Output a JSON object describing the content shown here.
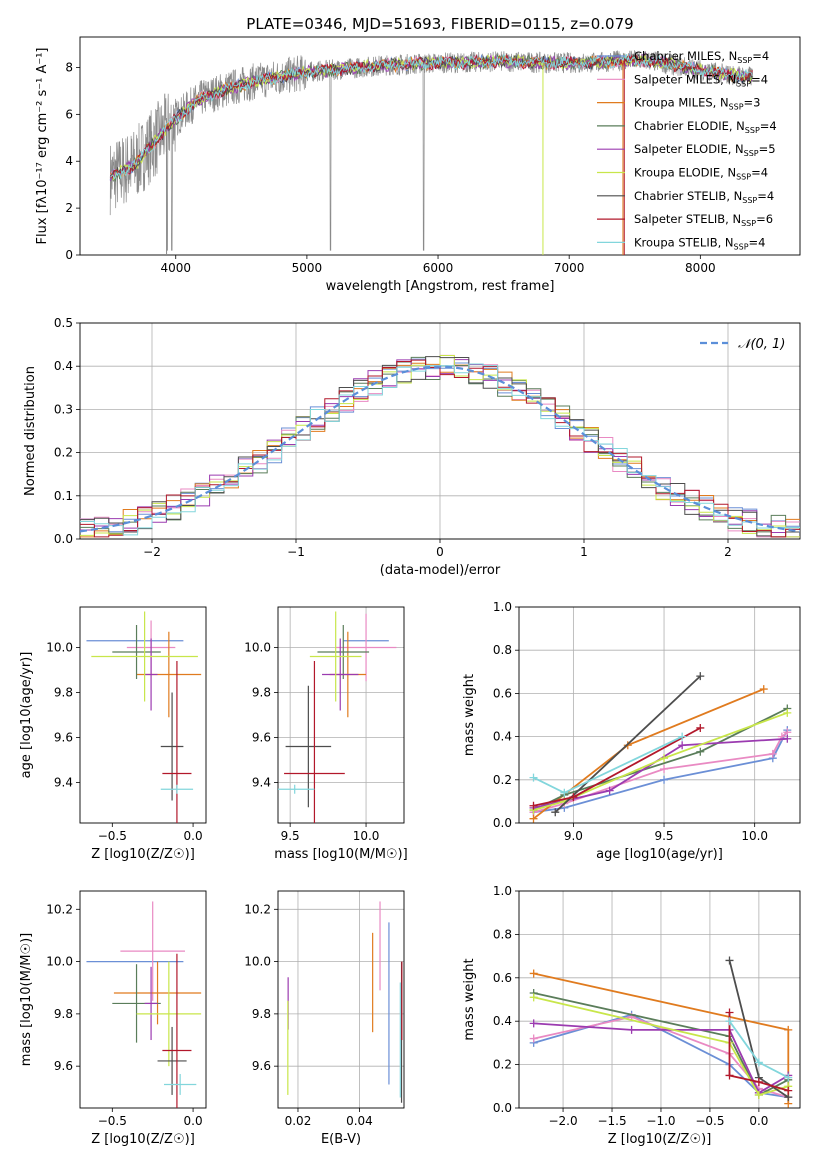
{
  "figure": {
    "title": "PLATE=0346, MJD=51693, FIBERID=0115, z=0.079"
  },
  "colors": {
    "chabrier_miles": "#6b8fd6",
    "salpeter_miles": "#e98ac3",
    "kroupa_miles": "#e07b1f",
    "chabrier_elodie": "#5a7d5a",
    "salpeter_elodie": "#9b3bb0",
    "kroupa_elodie": "#c8e64a",
    "chabrier_stelib": "#4d4d4d",
    "salpeter_stelib": "#b2182b",
    "kroupa_stelib": "#82d6dc",
    "data_gray": "#8a8a8a",
    "normal_curve": "#5b8fd9"
  },
  "chart_data": [
    {
      "id": "spectrum",
      "type": "line",
      "title": "",
      "xlabel": "wavelength [Angstrom, rest frame]",
      "ylabel": "Flux [fλ10⁻¹⁷ erg cm⁻² s⁻¹ A⁻¹]",
      "xlim": [
        3270,
        8760
      ],
      "ylim": [
        0,
        9.3
      ],
      "xticks": [
        4000,
        5000,
        6000,
        7000,
        8000
      ],
      "yticks": [
        0,
        2,
        4,
        6,
        8
      ],
      "grid": false,
      "legend": "right",
      "continuum": {
        "x": [
          3500,
          3600,
          3700,
          3800,
          3900,
          4000,
          4100,
          4200,
          4400,
          4600,
          4800,
          5000,
          5200,
          5400,
          5600,
          5800,
          6000,
          6200,
          6400,
          6600,
          6800,
          7000,
          7200,
          7400,
          7600,
          7800,
          8000,
          8200,
          8400
        ],
        "y": [
          3.3,
          3.6,
          3.9,
          4.6,
          5.2,
          5.8,
          6.3,
          6.7,
          7.1,
          7.4,
          7.6,
          7.8,
          7.9,
          8.0,
          8.1,
          8.15,
          8.2,
          8.2,
          8.25,
          8.25,
          8.2,
          8.2,
          8.2,
          8.3,
          8.3,
          8.1,
          7.9,
          7.7,
          7.6
        ]
      },
      "series": [
        {
          "name": "Chabrier MILES, N_SSP=4",
          "color_key": "chabrier_miles"
        },
        {
          "name": "Salpeter MILES, N_SSP=4",
          "color_key": "salpeter_miles"
        },
        {
          "name": "Kroupa MILES, N_SSP=3",
          "color_key": "kroupa_miles"
        },
        {
          "name": "Chabrier ELODIE, N_SSP=4",
          "color_key": "chabrier_elodie"
        },
        {
          "name": "Salpeter ELODIE, N_SSP=5",
          "color_key": "salpeter_elodie"
        },
        {
          "name": "Kroupa ELODIE, N_SSP=4",
          "color_key": "kroupa_elodie"
        },
        {
          "name": "Chabrier STELIB, N_SSP=4",
          "color_key": "chabrier_stelib"
        },
        {
          "name": "Salpeter STELIB, N_SSP=6",
          "color_key": "salpeter_stelib"
        },
        {
          "name": "Kroupa STELIB, N_SSP=4",
          "color_key": "kroupa_stelib"
        }
      ]
    },
    {
      "id": "residuals",
      "type": "line",
      "xlabel": "(data-model)/error",
      "ylabel": "Normed distribution",
      "xlim": [
        -2.5,
        2.5
      ],
      "ylim": [
        0,
        0.5
      ],
      "xticks": [
        -2,
        -1,
        0,
        1,
        2
      ],
      "yticks": [
        0.0,
        0.1,
        0.2,
        0.3,
        0.4,
        0.5
      ],
      "grid": true,
      "legend": "top-right",
      "normal_label": "𝒩(0, 1)",
      "bin_width": 0.1,
      "bins_start": -2.5
    },
    {
      "id": "age_vs_Z",
      "type": "scatter",
      "xlabel": "Z [log10(Z/Z☉)]",
      "ylabel": "age [log10(age/yr)]",
      "xlim": [
        -0.7,
        0.08
      ],
      "ylim": [
        9.22,
        10.18
      ],
      "xticks": [
        -0.5,
        0.0
      ],
      "yticks": [
        9.4,
        9.6,
        9.8,
        10.0
      ],
      "grid": false,
      "points": [
        {
          "color_key": "chabrier_miles",
          "x": -0.36,
          "xerr": 0.3,
          "y": 10.03,
          "yerr": 0.0
        },
        {
          "color_key": "salpeter_miles",
          "x": -0.26,
          "xerr": 0.15,
          "y": 10.0,
          "yerr": 0.12
        },
        {
          "color_key": "kroupa_miles",
          "x": -0.15,
          "xerr": 0.2,
          "y": 9.88,
          "yerr": 0.19
        },
        {
          "color_key": "chabrier_elodie",
          "x": -0.35,
          "xerr": 0.15,
          "y": 9.98,
          "yerr": 0.12
        },
        {
          "color_key": "salpeter_elodie",
          "x": -0.26,
          "xerr": 0.04,
          "y": 9.88,
          "yerr": 0.16
        },
        {
          "color_key": "kroupa_elodie",
          "x": -0.3,
          "xerr": 0.33,
          "y": 9.96,
          "yerr": 0.2
        },
        {
          "color_key": "chabrier_stelib",
          "x": -0.13,
          "xerr": 0.07,
          "y": 9.56,
          "yerr": 0.24
        },
        {
          "color_key": "salpeter_stelib",
          "x": -0.1,
          "xerr": 0.09,
          "y": 9.44,
          "yerr": 0.5
        },
        {
          "color_key": "kroupa_stelib",
          "x": -0.1,
          "xerr": 0.1,
          "y": 9.37,
          "yerr": 0.02
        }
      ]
    },
    {
      "id": "age_vs_mass",
      "type": "scatter",
      "xlabel": "mass [log10(M/M☉)]",
      "ylabel": "",
      "xlim": [
        9.42,
        10.25
      ],
      "ylim": [
        9.22,
        10.18
      ],
      "xticks": [
        9.5,
        10.0
      ],
      "yticks": [
        9.4,
        9.6,
        9.8,
        10.0
      ],
      "grid": true,
      "points": [
        {
          "color_key": "chabrier_miles",
          "x": 10.0,
          "xerr": 0.15,
          "y": 10.03,
          "yerr": 0.0
        },
        {
          "color_key": "salpeter_miles",
          "x": 10.0,
          "xerr": 0.2,
          "y": 10.0,
          "yerr": 0.15
        },
        {
          "color_key": "kroupa_miles",
          "x": 9.88,
          "xerr": 0.12,
          "y": 9.88,
          "yerr": 0.19
        },
        {
          "color_key": "chabrier_elodie",
          "x": 9.85,
          "xerr": 0.17,
          "y": 9.98,
          "yerr": 0.12
        },
        {
          "color_key": "salpeter_elodie",
          "x": 9.83,
          "xerr": 0.12,
          "y": 9.88,
          "yerr": 0.16
        },
        {
          "color_key": "kroupa_elodie",
          "x": 9.8,
          "xerr": 0.17,
          "y": 9.96,
          "yerr": 0.2
        },
        {
          "color_key": "chabrier_stelib",
          "x": 9.62,
          "xerr": 0.15,
          "y": 9.56,
          "yerr": 0.27
        },
        {
          "color_key": "salpeter_stelib",
          "x": 9.66,
          "xerr": 0.2,
          "y": 9.44,
          "yerr": 0.5
        },
        {
          "color_key": "kroupa_stelib",
          "x": 9.53,
          "xerr": 0.13,
          "y": 9.37,
          "yerr": 0.02
        }
      ]
    },
    {
      "id": "weight_vs_age",
      "type": "line",
      "xlabel": "age  [log10(age/yr)]",
      "ylabel": "mass weight",
      "xlim": [
        8.7,
        10.25
      ],
      "ylim": [
        0,
        1.0
      ],
      "xticks": [
        9.0,
        9.5,
        10.0
      ],
      "yticks": [
        0.0,
        0.2,
        0.4,
        0.6,
        0.8,
        1.0
      ],
      "grid": true,
      "series": [
        {
          "color_key": "chabrier_miles",
          "x": [
            8.78,
            8.95,
            9.5,
            10.1,
            10.18
          ],
          "y": [
            0.05,
            0.07,
            0.2,
            0.3,
            0.43
          ]
        },
        {
          "color_key": "salpeter_miles",
          "x": [
            8.78,
            8.95,
            9.5,
            10.1,
            10.15,
            10.18
          ],
          "y": [
            0.05,
            0.09,
            0.25,
            0.32,
            0.4,
            0.42
          ]
        },
        {
          "color_key": "kroupa_miles",
          "x": [
            8.78,
            9.3,
            10.05
          ],
          "y": [
            0.02,
            0.36,
            0.62
          ]
        },
        {
          "color_key": "chabrier_elodie",
          "x": [
            8.78,
            8.95,
            9.7,
            10.18
          ],
          "y": [
            0.06,
            0.13,
            0.33,
            0.53
          ]
        },
        {
          "color_key": "salpeter_elodie",
          "x": [
            8.78,
            9.2,
            9.6,
            10.18
          ],
          "y": [
            0.07,
            0.15,
            0.36,
            0.39
          ]
        },
        {
          "color_key": "kroupa_elodie",
          "x": [
            8.78,
            8.95,
            9.5,
            10.18
          ],
          "y": [
            0.06,
            0.1,
            0.3,
            0.51
          ]
        },
        {
          "color_key": "chabrier_stelib",
          "x": [
            8.9,
            9.7
          ],
          "y": [
            0.05,
            0.68
          ]
        },
        {
          "color_key": "salpeter_stelib",
          "x": [
            8.78,
            9.0,
            9.7
          ],
          "y": [
            0.08,
            0.12,
            0.44
          ]
        },
        {
          "color_key": "kroupa_stelib",
          "x": [
            8.78,
            8.95,
            9.6
          ],
          "y": [
            0.21,
            0.14,
            0.4
          ]
        }
      ]
    },
    {
      "id": "mass_vs_Z",
      "type": "scatter",
      "xlabel": "Z [log10(Z/Z☉)]",
      "ylabel": "mass [log10(M/M☉)]",
      "xlim": [
        -0.7,
        0.08
      ],
      "ylim": [
        9.44,
        10.27
      ],
      "xticks": [
        -0.5,
        0.0
      ],
      "yticks": [
        9.6,
        9.8,
        10.0,
        10.2
      ],
      "grid": false,
      "points": [
        {
          "color_key": "chabrier_miles",
          "x": -0.36,
          "xerr": 0.3,
          "y": 10.0,
          "yerr": 0.0
        },
        {
          "color_key": "salpeter_miles",
          "x": -0.25,
          "xerr": 0.2,
          "y": 10.04,
          "yerr": 0.19
        },
        {
          "color_key": "kroupa_miles",
          "x": -0.22,
          "xerr": 0.27,
          "y": 9.88,
          "yerr": 0.12
        },
        {
          "color_key": "chabrier_elodie",
          "x": -0.35,
          "xerr": 0.15,
          "y": 9.84,
          "yerr": 0.15
        },
        {
          "color_key": "salpeter_elodie",
          "x": -0.26,
          "xerr": 0.04,
          "y": 9.84,
          "yerr": 0.14
        },
        {
          "color_key": "kroupa_elodie",
          "x": -0.15,
          "xerr": 0.2,
          "y": 9.8,
          "yerr": 0.2
        },
        {
          "color_key": "chabrier_stelib",
          "x": -0.13,
          "xerr": 0.09,
          "y": 9.62,
          "yerr": 0.13
        },
        {
          "color_key": "salpeter_stelib",
          "x": -0.1,
          "xerr": 0.09,
          "y": 9.66,
          "yerr": 0.37
        },
        {
          "color_key": "kroupa_stelib",
          "x": -0.08,
          "xerr": 0.1,
          "y": 9.53,
          "yerr": 0.04
        }
      ]
    },
    {
      "id": "mass_vs_ebv",
      "type": "scatter",
      "xlabel": "E(B-V)",
      "ylabel": "",
      "xlim": [
        0.0135,
        0.0545
      ],
      "ylim": [
        9.44,
        10.27
      ],
      "xticks": [
        0.02,
        0.04
      ],
      "yticks": [
        9.6,
        9.8,
        10.0,
        10.2
      ],
      "grid": true,
      "points": [
        {
          "color_key": "salpeter_elodie",
          "x": 0.0168,
          "y": 9.84,
          "yerr": 0.1
        },
        {
          "color_key": "kroupa_elodie",
          "x": 0.0167,
          "y": 9.67,
          "yerr": 0.18
        },
        {
          "color_key": "kroupa_miles",
          "x": 0.0443,
          "y": 9.92,
          "yerr": 0.19
        },
        {
          "color_key": "salpeter_miles",
          "x": 0.0467,
          "y": 10.06,
          "yerr": 0.17
        },
        {
          "color_key": "chabrier_miles",
          "x": 0.0496,
          "y": 9.84,
          "yerr": 0.31
        },
        {
          "color_key": "chabrier_stelib",
          "x": 0.0537,
          "y": 9.73,
          "yerr": 0.27
        },
        {
          "color_key": "kroupa_stelib",
          "x": 0.0533,
          "y": 9.7,
          "yerr": 0.22
        },
        {
          "color_key": "salpeter_stelib",
          "x": 0.0538,
          "y": 9.85,
          "yerr": 0.15
        }
      ]
    },
    {
      "id": "weight_vs_Z",
      "type": "line",
      "xlabel": "Z [log10(Z/Z☉)]",
      "ylabel": "mass weight",
      "xlim": [
        -2.45,
        0.42
      ],
      "ylim": [
        0,
        1.0
      ],
      "xticks": [
        -2.0,
        -1.5,
        -1.0,
        -0.5,
        0.0
      ],
      "yticks": [
        0.0,
        0.2,
        0.4,
        0.6,
        0.8,
        1.0
      ],
      "grid": true,
      "series": [
        {
          "color_key": "chabrier_miles",
          "x": [
            -2.3,
            -1.3,
            -0.3,
            0.0,
            0.3
          ],
          "y": [
            0.3,
            0.43,
            0.2,
            0.07,
            0.05
          ]
        },
        {
          "color_key": "salpeter_miles",
          "x": [
            -2.3,
            -1.3,
            -0.3,
            0.0,
            0.3
          ],
          "y": [
            0.32,
            0.42,
            0.25,
            0.09,
            0.05
          ]
        },
        {
          "color_key": "kroupa_miles",
          "x": [
            -2.3,
            0.3,
            0.3
          ],
          "y": [
            0.62,
            0.36,
            0.02
          ]
        },
        {
          "color_key": "chabrier_elodie",
          "x": [
            -2.3,
            -0.3,
            0.0,
            0.3
          ],
          "y": [
            0.53,
            0.33,
            0.06,
            0.13
          ]
        },
        {
          "color_key": "salpeter_elodie",
          "x": [
            -2.3,
            -1.3,
            -0.3,
            0.0,
            0.3
          ],
          "y": [
            0.39,
            0.36,
            0.36,
            0.07,
            0.15
          ]
        },
        {
          "color_key": "kroupa_elodie",
          "x": [
            -2.3,
            -0.3,
            0.0,
            0.3
          ],
          "y": [
            0.51,
            0.3,
            0.06,
            0.1
          ]
        },
        {
          "color_key": "chabrier_stelib",
          "x": [
            -0.3,
            0.0,
            0.3
          ],
          "y": [
            0.68,
            0.14,
            0.05
          ]
        },
        {
          "color_key": "salpeter_stelib",
          "x": [
            -0.3,
            -0.3,
            0.0,
            0.3
          ],
          "y": [
            0.44,
            0.15,
            0.12,
            0.08
          ]
        },
        {
          "color_key": "kroupa_stelib",
          "x": [
            -0.3,
            0.0,
            0.3
          ],
          "y": [
            0.4,
            0.21,
            0.14
          ]
        }
      ]
    }
  ]
}
